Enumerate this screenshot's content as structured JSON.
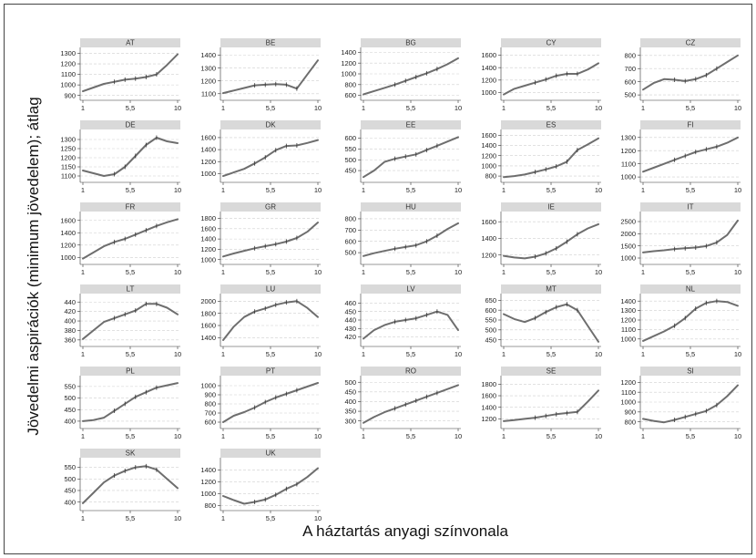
{
  "chart_data": {
    "type": "line",
    "xlabel": "A háztartás anyagi színvonala",
    "ylabel": "Jövedelmi aspirációk (minimum jövedelem); átlag",
    "x": [
      1,
      2,
      3,
      4,
      5,
      6,
      7,
      8,
      9,
      10
    ],
    "x_tick_values": [
      1,
      5.5,
      10
    ],
    "x_tick_labels": [
      "1",
      "5,5",
      "10"
    ],
    "grid": "horizontal dashed",
    "panels": [
      {
        "name": "AT",
        "y": [
          940,
          975,
          1010,
          1030,
          1050,
          1060,
          1075,
          1100,
          1190,
          1290
        ],
        "yticks": [
          900,
          1000,
          1100,
          1200,
          1300
        ],
        "ylim": [
          880,
          1330
        ]
      },
      {
        "name": "BE",
        "y": [
          1105,
          1125,
          1145,
          1165,
          1170,
          1175,
          1170,
          1140,
          1250,
          1360
        ],
        "yticks": [
          1100,
          1200,
          1300,
          1400
        ],
        "ylim": [
          1070,
          1440
        ]
      },
      {
        "name": "BG",
        "y": [
          620,
          680,
          740,
          800,
          870,
          940,
          1010,
          1090,
          1180,
          1290
        ],
        "yticks": [
          600,
          800,
          1000,
          1200,
          1400
        ],
        "ylim": [
          560,
          1440
        ]
      },
      {
        "name": "CY",
        "y": [
          970,
          1060,
          1110,
          1160,
          1210,
          1270,
          1300,
          1300,
          1370,
          1470
        ],
        "yticks": [
          1000,
          1200,
          1400,
          1600
        ],
        "ylim": [
          920,
          1680
        ]
      },
      {
        "name": "CZ",
        "y": [
          540,
          590,
          620,
          615,
          605,
          620,
          650,
          700,
          750,
          800
        ],
        "yticks": [
          500,
          600,
          700,
          800
        ],
        "ylim": [
          480,
          840
        ]
      },
      {
        "name": "DE",
        "y": [
          1130,
          1115,
          1100,
          1110,
          1150,
          1210,
          1270,
          1310,
          1290,
          1280
        ],
        "yticks": [
          1100,
          1150,
          1200,
          1250,
          1300
        ],
        "ylim": [
          1080,
          1340
        ]
      },
      {
        "name": "DK",
        "y": [
          960,
          1020,
          1080,
          1170,
          1270,
          1390,
          1460,
          1470,
          1510,
          1560
        ],
        "yticks": [
          1000,
          1200,
          1400,
          1600
        ],
        "ylim": [
          900,
          1690
        ]
      },
      {
        "name": "EE",
        "y": [
          420,
          450,
          490,
          505,
          515,
          525,
          545,
          565,
          585,
          605
        ],
        "yticks": [
          450,
          500,
          550,
          600
        ],
        "ylim": [
          408,
          628
        ]
      },
      {
        "name": "ES",
        "y": [
          780,
          800,
          830,
          880,
          930,
          990,
          1080,
          1310,
          1420,
          1540
        ],
        "yticks": [
          800,
          1000,
          1200,
          1400,
          1600
        ],
        "ylim": [
          730,
          1660
        ]
      },
      {
        "name": "FI",
        "y": [
          1040,
          1070,
          1100,
          1130,
          1160,
          1190,
          1210,
          1230,
          1260,
          1300
        ],
        "yticks": [
          1000,
          1100,
          1200,
          1300
        ],
        "ylim": [
          980,
          1340
        ]
      },
      {
        "name": "FR",
        "y": [
          980,
          1080,
          1180,
          1250,
          1300,
          1370,
          1440,
          1510,
          1570,
          1620
        ],
        "yticks": [
          1000,
          1200,
          1400,
          1600
        ],
        "ylim": [
          930,
          1700
        ]
      },
      {
        "name": "GR",
        "y": [
          1060,
          1120,
          1170,
          1220,
          1260,
          1300,
          1350,
          1420,
          1540,
          1720
        ],
        "yticks": [
          1000,
          1200,
          1400,
          1600,
          1800
        ],
        "ylim": [
          960,
          1880
        ]
      },
      {
        "name": "HU",
        "y": [
          470,
          495,
          515,
          535,
          550,
          565,
          600,
          650,
          710,
          760
        ],
        "yticks": [
          500,
          600,
          700,
          800
        ],
        "ylim": [
          420,
          840
        ]
      },
      {
        "name": "IE",
        "y": [
          1190,
          1170,
          1160,
          1180,
          1220,
          1280,
          1360,
          1450,
          1520,
          1570
        ],
        "yticks": [
          1200,
          1400,
          1600
        ],
        "ylim": [
          1120,
          1690
        ]
      },
      {
        "name": "IT",
        "y": [
          1230,
          1280,
          1320,
          1370,
          1400,
          1430,
          1490,
          1640,
          1950,
          2540
        ],
        "yticks": [
          1000,
          1500,
          2000,
          2500
        ],
        "ylim": [
          850,
          2800
        ]
      },
      {
        "name": "LT",
        "y": [
          362,
          380,
          398,
          406,
          414,
          422,
          436,
          436,
          428,
          414
        ],
        "yticks": [
          360,
          380,
          400,
          420,
          440
        ],
        "ylim": [
          352,
          452
        ]
      },
      {
        "name": "LU",
        "y": [
          1360,
          1580,
          1740,
          1830,
          1880,
          1940,
          1980,
          2000,
          1890,
          1740
        ],
        "yticks": [
          1400,
          1600,
          1800,
          2000
        ],
        "ylim": [
          1300,
          2080
        ]
      },
      {
        "name": "LV",
        "y": [
          418,
          428,
          434,
          438,
          440,
          442,
          446,
          450,
          446,
          428
        ],
        "yticks": [
          420,
          430,
          440,
          450,
          460
        ],
        "ylim": [
          412,
          468
        ]
      },
      {
        "name": "MT",
        "y": [
          580,
          555,
          540,
          560,
          590,
          615,
          630,
          600,
          520,
          440
        ],
        "yticks": [
          450,
          500,
          550,
          600,
          650
        ],
        "ylim": [
          430,
          670
        ]
      },
      {
        "name": "NL",
        "y": [
          980,
          1030,
          1080,
          1140,
          1220,
          1320,
          1380,
          1400,
          1390,
          1350
        ],
        "yticks": [
          1000,
          1100,
          1200,
          1300,
          1400
        ],
        "ylim": [
          950,
          1450
        ]
      },
      {
        "name": "PL",
        "y": [
          400,
          405,
          415,
          445,
          475,
          505,
          525,
          545,
          555,
          565
        ],
        "yticks": [
          400,
          450,
          500,
          550
        ],
        "ylim": [
          380,
          585
        ]
      },
      {
        "name": "PT",
        "y": [
          600,
          670,
          710,
          760,
          820,
          870,
          910,
          950,
          990,
          1030
        ],
        "yticks": [
          600,
          700,
          800,
          900,
          1000
        ],
        "ylim": [
          560,
          1080
        ]
      },
      {
        "name": "RO",
        "y": [
          290,
          320,
          345,
          365,
          385,
          405,
          425,
          445,
          465,
          485
        ],
        "yticks": [
          300,
          350,
          400,
          450,
          500
        ],
        "ylim": [
          275,
          520
        ]
      },
      {
        "name": "SE",
        "y": [
          1160,
          1180,
          1200,
          1220,
          1250,
          1280,
          1300,
          1320,
          1500,
          1690
        ],
        "yticks": [
          1200,
          1400,
          1600,
          1800
        ],
        "ylim": [
          1080,
          1900
        ]
      },
      {
        "name": "SI",
        "y": [
          830,
          810,
          795,
          820,
          850,
          880,
          910,
          970,
          1060,
          1170
        ],
        "yticks": [
          800,
          900,
          1000,
          1100,
          1200
        ],
        "ylim": [
          760,
          1240
        ]
      },
      {
        "name": "SK",
        "y": [
          395,
          440,
          485,
          515,
          535,
          550,
          555,
          540,
          500,
          460
        ],
        "yticks": [
          400,
          450,
          500,
          550
        ],
        "ylim": [
          375,
          580
        ]
      },
      {
        "name": "UK",
        "y": [
          960,
          890,
          830,
          860,
          900,
          980,
          1080,
          1160,
          1280,
          1430
        ],
        "yticks": [
          800,
          1000,
          1200,
          1400
        ],
        "ylim": [
          760,
          1560
        ]
      }
    ]
  }
}
